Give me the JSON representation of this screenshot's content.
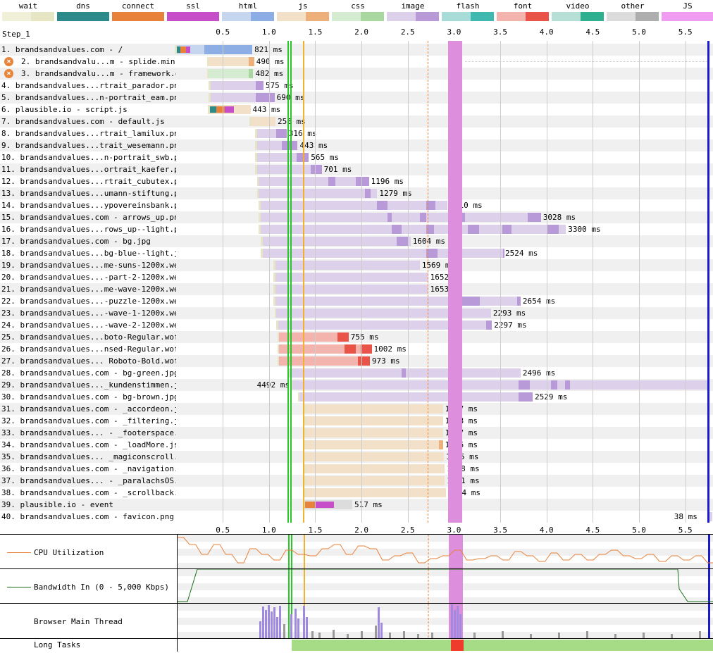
{
  "legend": [
    {
      "name": "wait",
      "light": "#f0efd8",
      "dark": "#e6e5c4"
    },
    {
      "name": "dns",
      "light": "#2c8a8a",
      "dark": "#2c8a8a"
    },
    {
      "name": "connect",
      "light": "#e8823a",
      "dark": "#e8823a"
    },
    {
      "name": "ssl",
      "light": "#c64fc9",
      "dark": "#c64fc9"
    },
    {
      "name": "html",
      "light": "#c6d6ef",
      "dark": "#8caee4"
    },
    {
      "name": "js",
      "light": "#f2e0c8",
      "dark": "#eeb07a"
    },
    {
      "name": "css",
      "light": "#d6ecd2",
      "dark": "#a8d8a0"
    },
    {
      "name": "image",
      "light": "#ddd0ea",
      "dark": "#b99ad8"
    },
    {
      "name": "flash",
      "light": "#a8dcd8",
      "dark": "#3fb8b0"
    },
    {
      "name": "font",
      "light": "#f4b4ae",
      "dark": "#ea5448"
    },
    {
      "name": "video",
      "light": "#b6e0d6",
      "dark": "#2eb090"
    },
    {
      "name": "other",
      "light": "#dcdcdc",
      "dark": "#aeaeae"
    },
    {
      "name": "JS Execution",
      "light": "#f09cf0",
      "dark": "#f09cf0"
    }
  ],
  "step": "Step_1",
  "axis_ticks": [
    "0.5",
    "1.0",
    "1.5",
    "2.0",
    "2.5",
    "3.0",
    "3.5",
    "4.0",
    "4.5",
    "5.0",
    "5.5"
  ],
  "requests": [
    {
      "label": "1. brandsandvalues.com - /",
      "ms": "821 ms",
      "warn": false
    },
    {
      "label": "2. brandsandvalu...m - splide.min.js",
      "ms": "490 ms",
      "warn": true
    },
    {
      "label": "3. brandsandvalu...m - framework.css",
      "ms": "482 ms",
      "warn": true
    },
    {
      "label": "4. brandsandvalues...rtrait_parador.png",
      "ms": "575 ms",
      "warn": false
    },
    {
      "label": "5. brandsandvalues...n-portrait_eam.png",
      "ms": "690 ms",
      "warn": false
    },
    {
      "label": "6. plausible.io - script.js",
      "ms": "443 ms",
      "warn": false
    },
    {
      "label": "7. brandsandvalues.com - default.js",
      "ms": "258 ms",
      "warn": false
    },
    {
      "label": "8. brandsandvalues...rtrait_lamilux.png",
      "ms": "316 ms",
      "warn": false
    },
    {
      "label": "9. brandsandvalues...trait_wesemann.png",
      "ms": "443 ms",
      "warn": false
    },
    {
      "label": "10. brandsandvalues...n-portrait_swb.png",
      "ms": "565 ms",
      "warn": false
    },
    {
      "label": "11. brandsandvalues...ortrait_kaefer.png",
      "ms": "701 ms",
      "warn": false
    },
    {
      "label": "12. brandsandvalues...rtrait_cubutex.png",
      "ms": "1196 ms",
      "warn": false
    },
    {
      "label": "13. brandsandvalues...umann-stiftung.png",
      "ms": "1279 ms",
      "warn": false
    },
    {
      "label": "14. brandsandvalues...ypovereinsbank.png",
      "ms": "2010 ms",
      "warn": false
    },
    {
      "label": "15. brandsandvalues.com - arrows_up.png",
      "ms": "3028 ms",
      "warn": false
    },
    {
      "label": "16. brandsandvalues...rows_up--light.png",
      "ms": "3300 ms",
      "warn": false
    },
    {
      "label": "17. brandsandvalues.com - bg.jpg",
      "ms": "1604 ms",
      "warn": false
    },
    {
      "label": "18. brandsandvalues...bg-blue--light.jpg",
      "ms": "2524 ms",
      "warn": false
    },
    {
      "label": "19. brandsandvalues...me-suns-1200x.webp",
      "ms": "1569 ms",
      "warn": false
    },
    {
      "label": "20. brandsandvalues...-part-2-1200x.webp",
      "ms": "1652 ms",
      "warn": false
    },
    {
      "label": "21. brandsandvalues...me-wave-1200x.webp",
      "ms": "1653 ms",
      "warn": false
    },
    {
      "label": "22. brandsandvalues...-puzzle-1200x.webp",
      "ms": "2654 ms",
      "warn": false
    },
    {
      "label": "23. brandsandvalues...-wave-1-1200x.webp",
      "ms": "2293 ms",
      "warn": false
    },
    {
      "label": "24. brandsandvalues...-wave-2-1200x.webp",
      "ms": "2297 ms",
      "warn": false
    },
    {
      "label": "25. brandsandvalues...boto-Regular.woff2",
      "ms": "755 ms",
      "warn": false
    },
    {
      "label": "26. brandsandvalues...nsed-Regular.woff2",
      "ms": "1002 ms",
      "warn": false
    },
    {
      "label": "27. brandsandvalues... Roboto-Bold.woff2",
      "ms": "973 ms",
      "warn": false
    },
    {
      "label": "28. brandsandvalues.com - bg-green.jpg",
      "ms": "2496 ms",
      "warn": false
    },
    {
      "label": "29. brandsandvalues..._kundenstimmen.jpg",
      "ms": "4492 ms",
      "warn": false
    },
    {
      "label": "30. brandsandvalues.com - bg-brown.jpg",
      "ms": "2529 ms",
      "warn": false
    },
    {
      "label": "31. brandsandvalues.com - _accordeon.js",
      "ms": "1477 ms",
      "warn": false
    },
    {
      "label": "32. brandsandvalues.com - _filtering.js",
      "ms": "1478 ms",
      "warn": false
    },
    {
      "label": "33. brandsandvalues... - _footerspace.js",
      "ms": "1477 ms",
      "warn": false
    },
    {
      "label": "34. brandsandvalues.com - _loadMore.js",
      "ms": "1486 ms",
      "warn": false
    },
    {
      "label": "35. brandsandvalues... _magiconscroll.js",
      "ms": "1495 ms",
      "warn": false
    },
    {
      "label": "36. brandsandvalues.com - _navigation.js",
      "ms": "1498 ms",
      "warn": false
    },
    {
      "label": "37. brandsandvalues... - _paralachsOS.js",
      "ms": "1501 ms",
      "warn": false
    },
    {
      "label": "38. brandsandvalues.com - _scrollback.js",
      "ms": "1504 ms",
      "warn": false
    },
    {
      "label": "39. plausible.io - event",
      "ms": "517 ms",
      "warn": false
    },
    {
      "label": "40. brandsandvalues.com - favicon.png",
      "ms": "38 ms",
      "warn": false
    }
  ],
  "panels": {
    "cpu_label": "CPU Utilization",
    "bw_label": "Bandwidth In (0 - 5,000 Kbps)",
    "main_label": "Browser Main Thread",
    "long_label": "Long Tasks"
  }
}
